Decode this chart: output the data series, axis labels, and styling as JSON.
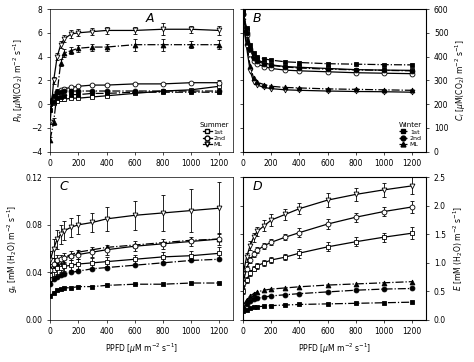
{
  "ppfd": [
    0,
    25,
    50,
    75,
    100,
    150,
    200,
    300,
    400,
    600,
    800,
    1000,
    1200
  ],
  "A_sum_1st_y": [
    0.0,
    0.1,
    0.3,
    0.4,
    0.4,
    0.5,
    0.5,
    0.6,
    0.7,
    0.9,
    1.1,
    1.2,
    1.5
  ],
  "A_sum_2nd_y": [
    0.3,
    0.6,
    1.0,
    1.2,
    1.3,
    1.4,
    1.5,
    1.6,
    1.6,
    1.7,
    1.7,
    1.8,
    1.8
  ],
  "A_sum_ML_y": [
    -1.5,
    2.0,
    4.0,
    5.0,
    5.5,
    5.9,
    6.0,
    6.1,
    6.2,
    6.2,
    6.3,
    6.3,
    6.2
  ],
  "A_win_1st_y": [
    -0.5,
    0.2,
    0.5,
    0.6,
    0.7,
    0.8,
    0.8,
    0.9,
    0.9,
    1.0,
    1.0,
    1.0,
    1.0
  ],
  "A_win_2nd_y": [
    0.3,
    0.7,
    1.0,
    1.0,
    1.1,
    1.1,
    1.1,
    1.1,
    1.1,
    1.1,
    1.1,
    1.1,
    1.1
  ],
  "A_win_ML_y": [
    -3.0,
    -1.5,
    1.0,
    3.5,
    4.3,
    4.5,
    4.7,
    4.8,
    4.8,
    5.0,
    5.0,
    5.0,
    5.0
  ],
  "A_sum_1st_e": [
    0.1,
    0.1,
    0.1,
    0.1,
    0.1,
    0.1,
    0.1,
    0.1,
    0.1,
    0.1,
    0.1,
    0.1,
    0.2
  ],
  "A_sum_2nd_e": [
    0.1,
    0.1,
    0.1,
    0.1,
    0.1,
    0.1,
    0.1,
    0.1,
    0.1,
    0.1,
    0.1,
    0.1,
    0.2
  ],
  "A_sum_ML_e": [
    0.2,
    0.3,
    0.3,
    0.3,
    0.3,
    0.3,
    0.3,
    0.3,
    0.3,
    0.3,
    0.5,
    0.3,
    0.4
  ],
  "A_win_1st_e": [
    0.1,
    0.1,
    0.1,
    0.1,
    0.1,
    0.1,
    0.1,
    0.1,
    0.1,
    0.1,
    0.1,
    0.1,
    0.1
  ],
  "A_win_2nd_e": [
    0.1,
    0.1,
    0.1,
    0.1,
    0.1,
    0.1,
    0.1,
    0.1,
    0.1,
    0.1,
    0.1,
    0.1,
    0.1
  ],
  "A_win_ML_e": [
    0.2,
    0.3,
    0.3,
    0.3,
    0.3,
    0.3,
    0.3,
    0.3,
    0.3,
    0.5,
    0.5,
    0.3,
    0.4
  ],
  "B_sum_1st_y": [
    590,
    510,
    430,
    400,
    385,
    375,
    365,
    358,
    355,
    350,
    345,
    343,
    342
  ],
  "B_sum_2nd_y": [
    580,
    490,
    410,
    380,
    368,
    358,
    350,
    343,
    340,
    336,
    332,
    330,
    328
  ],
  "B_sum_ML_y": [
    550,
    440,
    340,
    295,
    280,
    270,
    265,
    260,
    258,
    255,
    253,
    252,
    250
  ],
  "B_win_1st_y": [
    590,
    520,
    450,
    415,
    400,
    390,
    385,
    378,
    375,
    370,
    368,
    366,
    365
  ],
  "B_win_2nd_y": [
    580,
    500,
    430,
    395,
    380,
    370,
    363,
    356,
    352,
    347,
    344,
    342,
    340
  ],
  "B_win_ML_y": [
    550,
    460,
    360,
    310,
    292,
    282,
    275,
    270,
    268,
    264,
    262,
    260,
    258
  ],
  "B_sum_1st_e": [
    15,
    12,
    12,
    8,
    8,
    6,
    6,
    6,
    6,
    6,
    6,
    6,
    8
  ],
  "B_sum_ML_e": [
    15,
    12,
    12,
    8,
    8,
    6,
    6,
    6,
    6,
    6,
    6,
    6,
    8
  ],
  "B_win_1st_e": [
    15,
    12,
    12,
    8,
    8,
    6,
    6,
    6,
    6,
    6,
    6,
    6,
    8
  ],
  "B_win_ML_e": [
    15,
    12,
    12,
    8,
    8,
    6,
    6,
    6,
    6,
    6,
    6,
    6,
    8
  ],
  "C_sum_1st_y": [
    0.038,
    0.042,
    0.044,
    0.044,
    0.045,
    0.046,
    0.047,
    0.048,
    0.049,
    0.051,
    0.053,
    0.054,
    0.056
  ],
  "C_sum_2nd_y": [
    0.042,
    0.047,
    0.05,
    0.051,
    0.052,
    0.054,
    0.055,
    0.057,
    0.059,
    0.062,
    0.064,
    0.066,
    0.068
  ],
  "C_sum_ML_y": [
    0.05,
    0.06,
    0.068,
    0.072,
    0.075,
    0.078,
    0.08,
    0.082,
    0.085,
    0.088,
    0.09,
    0.092,
    0.094
  ],
  "C_win_1st_y": [
    0.02,
    0.023,
    0.025,
    0.026,
    0.027,
    0.027,
    0.028,
    0.028,
    0.029,
    0.03,
    0.03,
    0.031,
    0.031
  ],
  "C_win_2nd_y": [
    0.03,
    0.034,
    0.036,
    0.038,
    0.039,
    0.04,
    0.041,
    0.043,
    0.044,
    0.046,
    0.048,
    0.05,
    0.051
  ],
  "C_win_ML_y": [
    0.038,
    0.044,
    0.048,
    0.051,
    0.053,
    0.055,
    0.057,
    0.059,
    0.061,
    0.063,
    0.065,
    0.067,
    0.068
  ],
  "C_sum_1st_e": [
    0.005,
    0.005,
    0.005,
    0.004,
    0.004,
    0.004,
    0.004,
    0.004,
    0.004,
    0.004,
    0.004,
    0.004,
    0.005
  ],
  "C_sum_2nd_e": [
    0.005,
    0.005,
    0.005,
    0.004,
    0.004,
    0.004,
    0.004,
    0.004,
    0.004,
    0.004,
    0.004,
    0.004,
    0.005
  ],
  "C_sum_ML_e": [
    0.008,
    0.008,
    0.008,
    0.008,
    0.008,
    0.008,
    0.008,
    0.008,
    0.01,
    0.012,
    0.015,
    0.018,
    0.022
  ],
  "D_sum_1st_y": [
    0.5,
    0.7,
    0.82,
    0.9,
    0.95,
    1.0,
    1.05,
    1.1,
    1.17,
    1.28,
    1.37,
    1.45,
    1.52
  ],
  "D_sum_2nd_y": [
    0.65,
    0.9,
    1.05,
    1.15,
    1.22,
    1.3,
    1.36,
    1.45,
    1.53,
    1.68,
    1.8,
    1.9,
    1.98
  ],
  "D_sum_ML_y": [
    0.8,
    1.1,
    1.3,
    1.45,
    1.55,
    1.65,
    1.75,
    1.85,
    1.95,
    2.1,
    2.2,
    2.28,
    2.35
  ],
  "D_win_1st_y": [
    0.15,
    0.18,
    0.2,
    0.22,
    0.23,
    0.24,
    0.25,
    0.26,
    0.27,
    0.28,
    0.29,
    0.3,
    0.31
  ],
  "D_win_2nd_y": [
    0.2,
    0.28,
    0.33,
    0.36,
    0.38,
    0.4,
    0.42,
    0.44,
    0.46,
    0.49,
    0.52,
    0.54,
    0.55
  ],
  "D_win_ML_y": [
    0.25,
    0.35,
    0.42,
    0.46,
    0.49,
    0.52,
    0.54,
    0.56,
    0.58,
    0.61,
    0.63,
    0.65,
    0.67
  ],
  "D_sum_1st_e": [
    0.05,
    0.05,
    0.05,
    0.05,
    0.05,
    0.05,
    0.05,
    0.05,
    0.08,
    0.08,
    0.08,
    0.08,
    0.1
  ],
  "D_sum_2nd_e": [
    0.05,
    0.05,
    0.05,
    0.05,
    0.05,
    0.05,
    0.05,
    0.05,
    0.08,
    0.08,
    0.08,
    0.08,
    0.1
  ],
  "D_sum_ML_e": [
    0.05,
    0.08,
    0.08,
    0.08,
    0.08,
    0.1,
    0.1,
    0.1,
    0.1,
    0.12,
    0.12,
    0.12,
    0.15
  ],
  "ppfd_xvals": [
    0,
    25,
    50,
    75,
    100,
    150,
    200,
    300,
    400,
    600,
    800,
    1000,
    1200
  ],
  "ylim_A": [
    -4,
    8
  ],
  "ylim_B": [
    0,
    600
  ],
  "ylim_C": [
    0,
    0.12
  ],
  "ylim_D": [
    0,
    2.5
  ],
  "xlim": [
    0,
    1300
  ]
}
